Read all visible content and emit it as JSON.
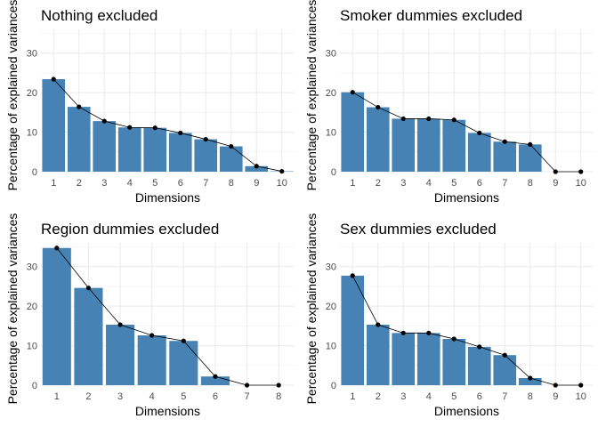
{
  "chart_data": [
    {
      "type": "bar",
      "title": "Nothing excluded",
      "xlabel": "Dimensions",
      "ylabel": "Percentage of explained variances",
      "categories": [
        "1",
        "2",
        "3",
        "4",
        "5",
        "6",
        "7",
        "8",
        "9",
        "10"
      ],
      "values": [
        23.4,
        16.4,
        12.8,
        11.2,
        11.1,
        9.8,
        8.2,
        6.4,
        1.4,
        0.1
      ],
      "ylim": [
        0,
        36
      ],
      "yticks": [
        0,
        10,
        20,
        30
      ],
      "grid": true,
      "bar_color": "#4682B4",
      "line_color": "#000000"
    },
    {
      "type": "bar",
      "title": "Smoker dummies excluded",
      "xlabel": "Dimensions",
      "ylabel": "Percentage of explained variances",
      "categories": [
        "1",
        "2",
        "3",
        "4",
        "5",
        "6",
        "7",
        "8",
        "9",
        "10"
      ],
      "values": [
        20.1,
        16.3,
        13.4,
        13.4,
        13.1,
        9.8,
        7.6,
        6.9,
        0.0,
        0.0
      ],
      "ylim": [
        0,
        36
      ],
      "yticks": [
        0,
        10,
        20,
        30
      ],
      "grid": true,
      "bar_color": "#4682B4",
      "line_color": "#000000"
    },
    {
      "type": "bar",
      "title": "Region dummies excluded",
      "xlabel": "Dimensions",
      "ylabel": "Percentage of explained variances",
      "categories": [
        "1",
        "2",
        "3",
        "4",
        "5",
        "6",
        "7",
        "8"
      ],
      "values": [
        34.7,
        24.6,
        15.3,
        12.6,
        11.2,
        2.2,
        0.0,
        0.0
      ],
      "ylim": [
        0,
        36
      ],
      "yticks": [
        0,
        10,
        20,
        30
      ],
      "grid": true,
      "bar_color": "#4682B4",
      "line_color": "#000000"
    },
    {
      "type": "bar",
      "title": "Sex dummies excluded",
      "xlabel": "Dimensions",
      "ylabel": "Percentage of explained variances",
      "categories": [
        "1",
        "2",
        "3",
        "4",
        "5",
        "6",
        "7",
        "8",
        "9",
        "10"
      ],
      "values": [
        27.7,
        15.3,
        13.2,
        13.2,
        11.7,
        9.7,
        7.6,
        1.8,
        0.0,
        0.0
      ],
      "ylim": [
        0,
        36
      ],
      "yticks": [
        0,
        10,
        20,
        30
      ],
      "grid": true,
      "bar_color": "#4682B4",
      "line_color": "#000000"
    }
  ]
}
